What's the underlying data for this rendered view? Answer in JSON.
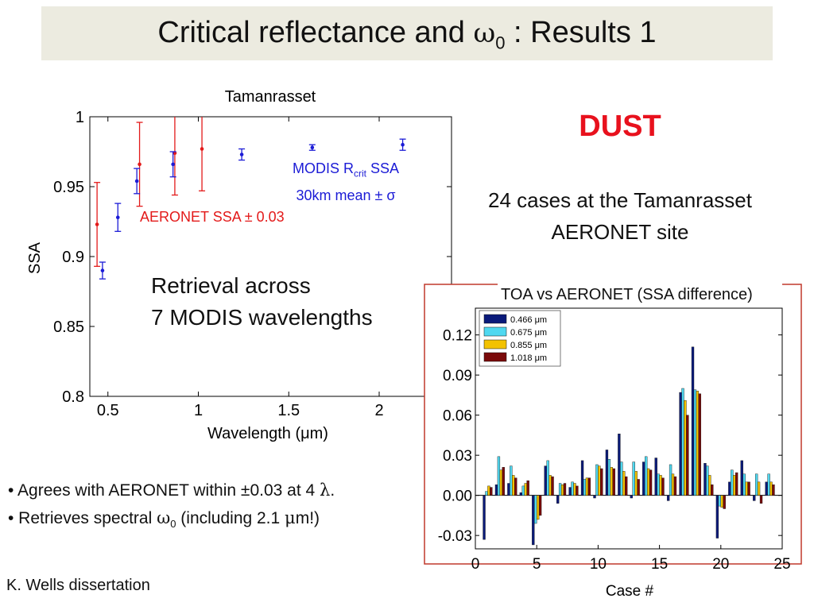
{
  "slide": {
    "title_pre": "Critical reflectance and ",
    "title_sym": "ω",
    "title_sub": "0",
    "title_post": " : Results 1",
    "dust": "DUST",
    "cases_line1": "24 cases at the Tamanrasset",
    "cases_line2": "AERONET site",
    "retrieval_line1": "Retrieval across",
    "retrieval_line2": "7 MODIS wavelengths",
    "bullet1_pre": "• Agrees with AERONET within ±0.03 at 4 ",
    "bullet1_sym": "λ",
    "bullet1_post": ".",
    "bullet2_pre": "• Retrieves spectral ",
    "bullet2_sym": "ω",
    "bullet2_sub": "0",
    "bullet2_mid": " (including 2.1 ",
    "bullet2_mu": "μ",
    "bullet2_post": "m!)",
    "credit": "K. Wells dissertation",
    "modis_label_1a": "MODIS R",
    "modis_label_1sub": "crit",
    "modis_label_1b": " SSA",
    "modis_label_2": "30km mean ± σ",
    "aeronet_label": "AERONET SSA ± 0.03"
  },
  "colors": {
    "title_bg": "#ecebe0",
    "dust": "#e8111d",
    "aeronet": "#e31a1a",
    "modis": "#1b1bd6",
    "frame": "#c0392b",
    "bar_466": "#0a1a7a",
    "bar_675": "#4fd8f0",
    "bar_855": "#f3c200",
    "bar_1018": "#7a0a0a"
  },
  "chart_data": [
    {
      "type": "scatter",
      "title": "Tamanrasset",
      "xlabel": "Wavelength (μm)",
      "ylabel": "SSA",
      "xlim": [
        0.4,
        2.4
      ],
      "ylim": [
        0.8,
        1.0
      ],
      "xticks": [
        "0.5",
        "1",
        "1.5",
        "2"
      ],
      "yticks": [
        "0.8",
        "0.85",
        "0.9",
        "0.95",
        "1"
      ],
      "series": [
        {
          "name": "AERONET SSA ± 0.03",
          "x": [
            0.44,
            0.675,
            0.87,
            1.02
          ],
          "y": [
            0.923,
            0.966,
            0.974,
            0.977
          ],
          "err": [
            0.03,
            0.03,
            0.03,
            0.03
          ]
        },
        {
          "name": "MODIS Rcrit SSA 30km mean ± σ",
          "x": [
            0.47,
            0.555,
            0.66,
            0.86,
            1.24,
            1.63,
            2.13
          ],
          "y": [
            0.89,
            0.928,
            0.954,
            0.966,
            0.973,
            0.978,
            0.98
          ],
          "err": [
            0.006,
            0.01,
            0.009,
            0.009,
            0.004,
            0.002,
            0.004
          ]
        }
      ]
    },
    {
      "type": "bar",
      "title": "TOA vs AERONET (SSA difference)",
      "xlabel": "Case #",
      "ylabel": "",
      "ylim": [
        -0.04,
        0.14
      ],
      "xlim": [
        0,
        25
      ],
      "xticks": [
        "0",
        "5",
        "10",
        "15",
        "20",
        "25"
      ],
      "yticks": [
        "-0.03",
        "0.00",
        "0.03",
        "0.06",
        "0.09",
        "0.12"
      ],
      "legend_position": "top-left",
      "categories": [
        1,
        2,
        3,
        4,
        5,
        6,
        7,
        8,
        9,
        10,
        11,
        12,
        13,
        14,
        15,
        16,
        17,
        18,
        19,
        20,
        21,
        22,
        23,
        24
      ],
      "series": [
        {
          "name": "0.466 μm",
          "values": [
            -0.033,
            0.008,
            0.009,
            0.002,
            -0.037,
            0.022,
            -0.006,
            0.006,
            0.026,
            -0.002,
            0.034,
            0.046,
            -0.002,
            0.025,
            0.028,
            -0.004,
            0.077,
            0.111,
            0.024,
            -0.032,
            0.01,
            0.026,
            -0.004,
            0.01
          ]
        },
        {
          "name": "0.675 μm",
          "values": [
            0.003,
            0.029,
            0.022,
            0.007,
            -0.021,
            0.026,
            0.009,
            0.01,
            0.012,
            0.023,
            0.027,
            0.025,
            0.025,
            0.029,
            0.016,
            0.023,
            0.08,
            0.079,
            0.022,
            -0.008,
            0.019,
            0.016,
            0.016,
            0.016
          ]
        },
        {
          "name": "0.855 μm",
          "values": [
            0.007,
            0.019,
            0.015,
            0.009,
            -0.018,
            0.015,
            0.008,
            0.009,
            0.013,
            0.022,
            0.021,
            0.018,
            0.018,
            0.02,
            0.015,
            0.016,
            0.071,
            0.078,
            0.015,
            -0.009,
            0.015,
            0.01,
            0.01,
            0.01
          ]
        },
        {
          "name": "1.018 μm",
          "values": [
            0.006,
            0.021,
            0.013,
            0.011,
            -0.015,
            0.014,
            0.009,
            0.007,
            0.013,
            0.02,
            0.02,
            0.014,
            0.012,
            0.019,
            0.013,
            0.014,
            0.06,
            0.076,
            0.008,
            -0.01,
            0.017,
            0.01,
            -0.006,
            0.008
          ]
        }
      ]
    }
  ]
}
